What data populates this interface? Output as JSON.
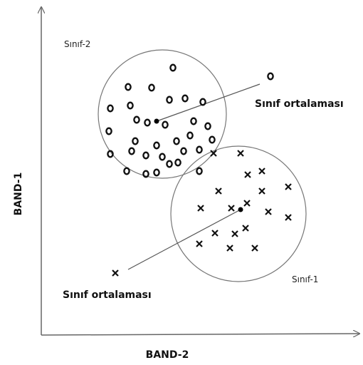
{
  "labels": {
    "class2": "Sınıf-2",
    "class1": "Sınıf-1",
    "mean_top": "Sınıf ortalaması",
    "mean_bottom": "Sınıf ortalaması"
  },
  "axes": {
    "y": "BAND-1",
    "x": "BAND-2"
  }
}
